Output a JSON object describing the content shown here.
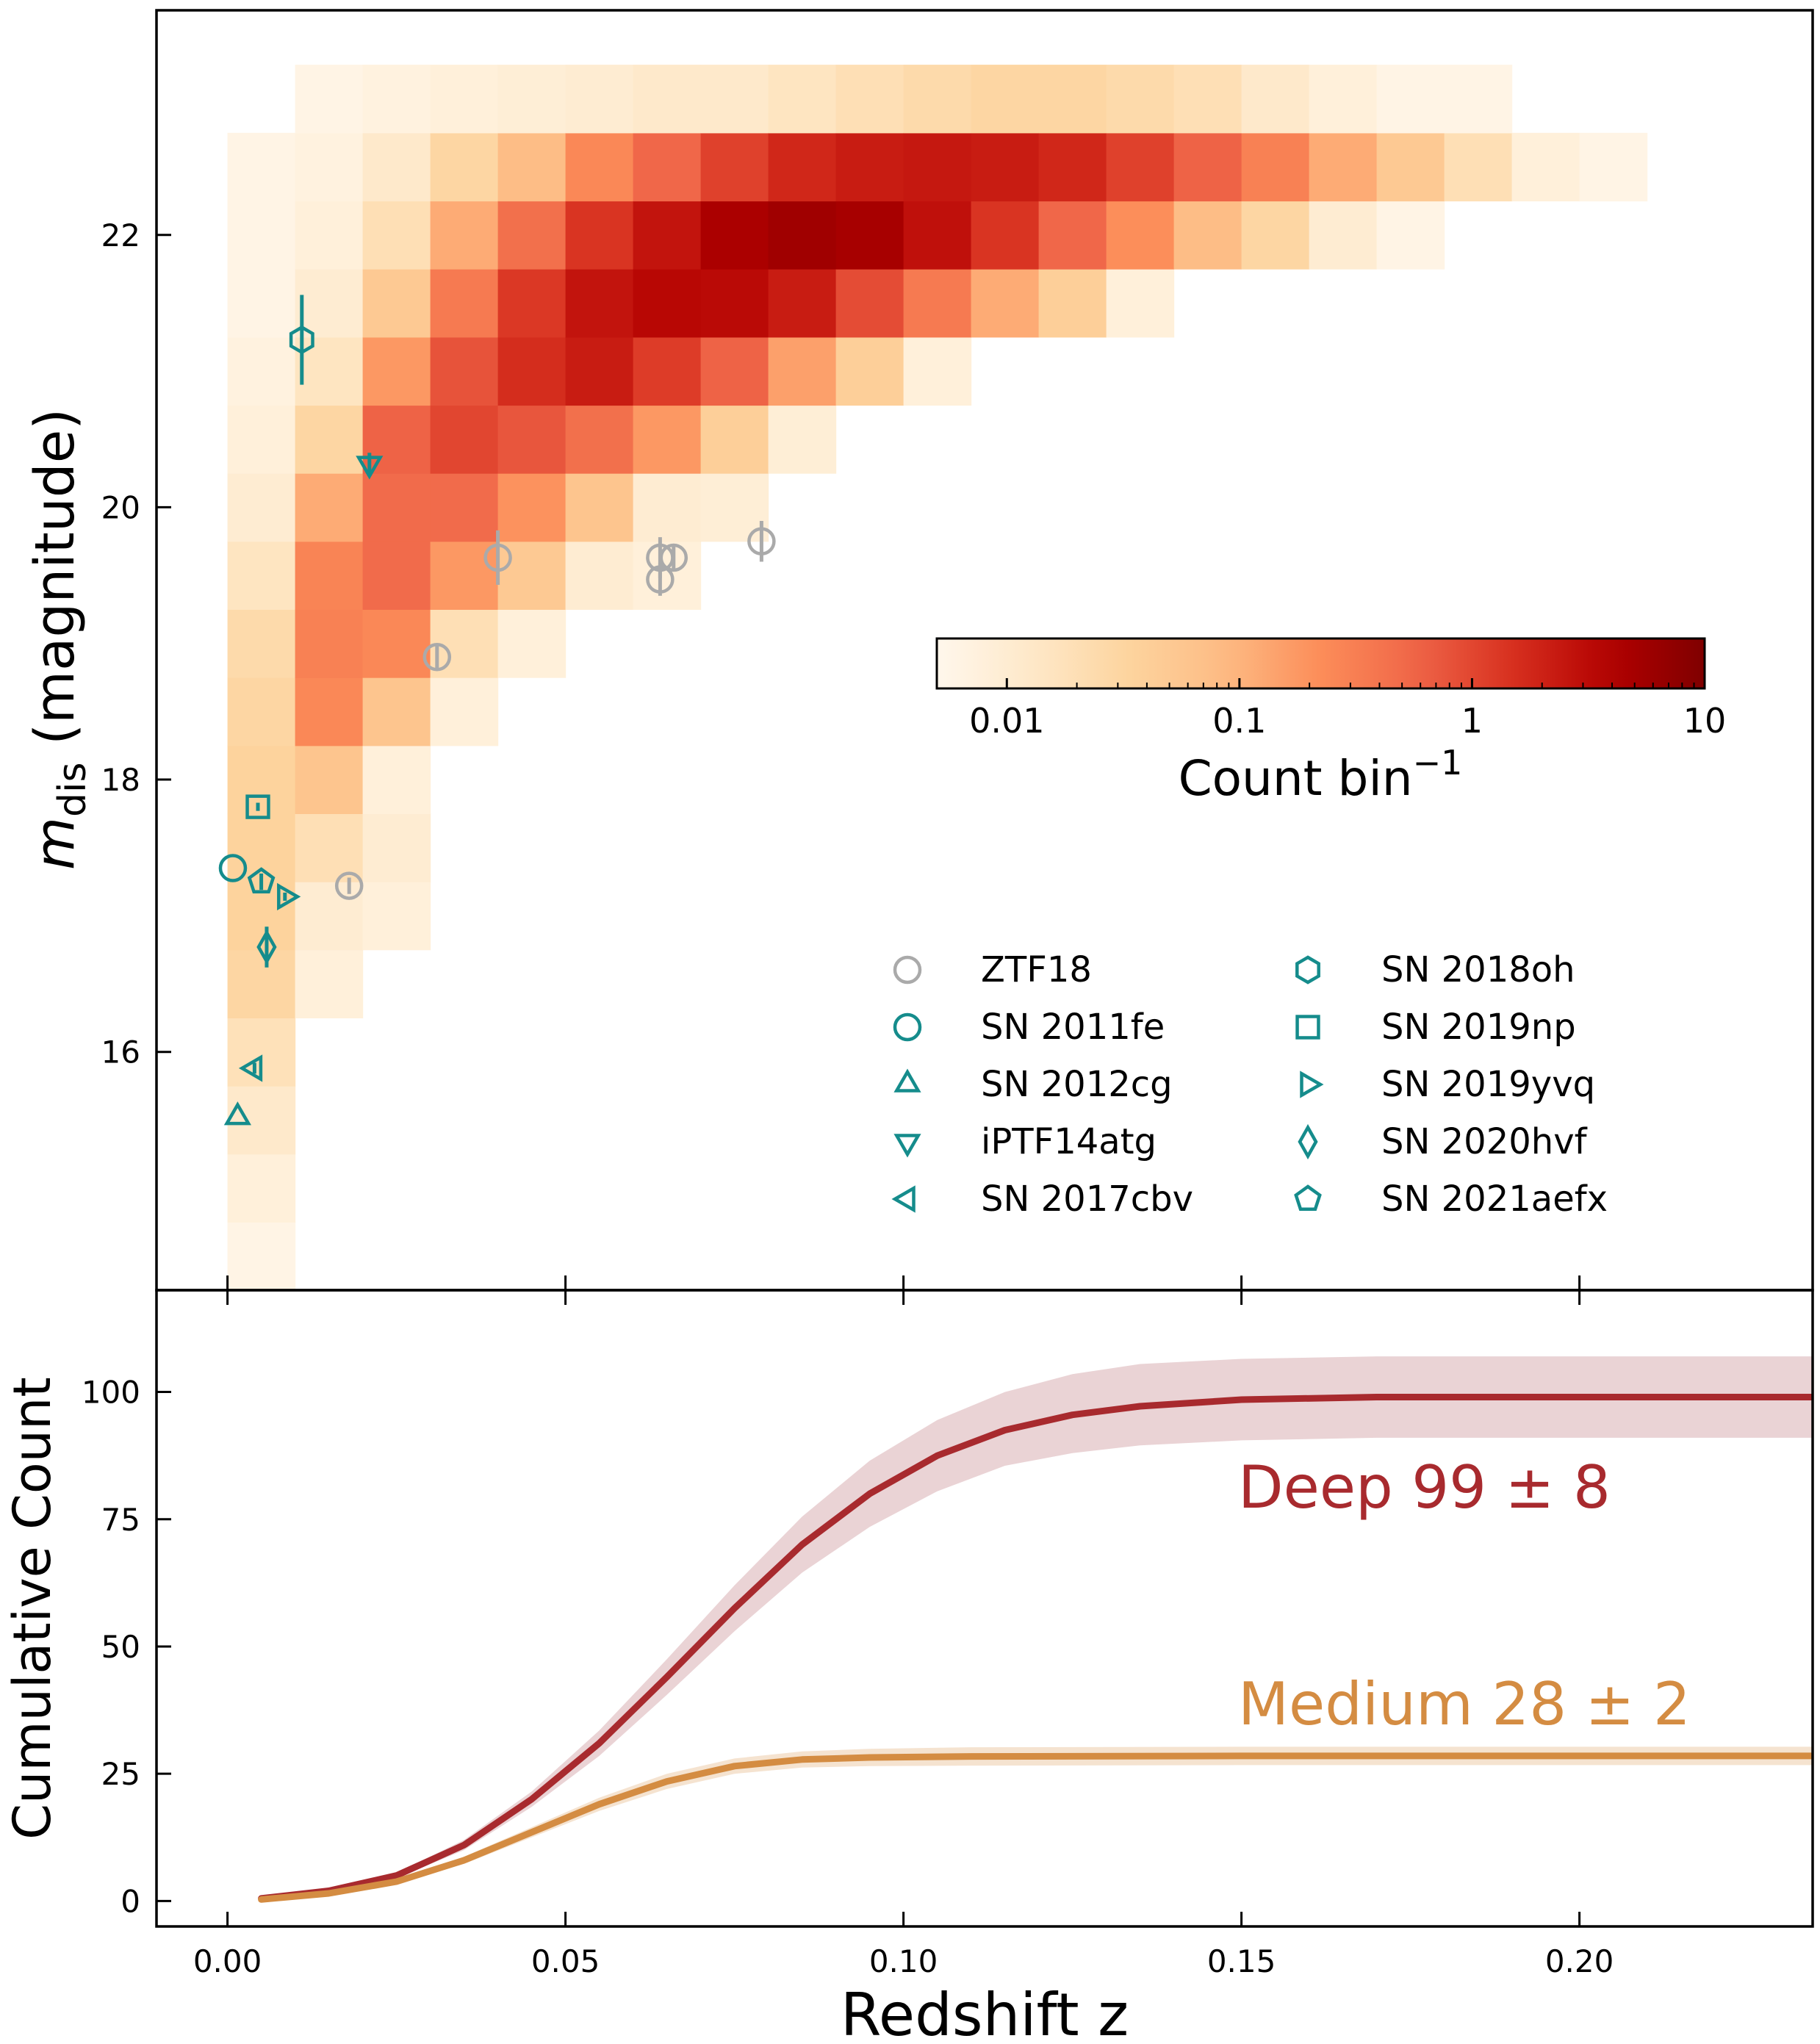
{
  "chart_data": [
    {
      "type": "heatmap",
      "panel": "top",
      "ylabel": "m",
      "ylabel_sub": "dis",
      "ylabel_suffix": " (magnitude)",
      "xlim": [
        -0.0105,
        0.2345
      ],
      "ylim": [
        14.25,
        23.65
      ],
      "yticks": [
        16,
        18,
        20,
        22
      ],
      "cell": {
        "dz": 0.01,
        "dm": 0.5
      },
      "colorbar": {
        "label": "Count bin",
        "label_sup": "−1",
        "scale": "log",
        "range": [
          0.005,
          10
        ],
        "ticks": [
          0.01,
          0.1,
          1,
          10
        ],
        "tick_labels": [
          "0.01",
          "0.1",
          "1",
          "10"
        ],
        "colormap": "OrRd"
      },
      "cells": [
        [
          0.005,
          14.5,
          0.006
        ],
        [
          0.005,
          15.0,
          0.008
        ],
        [
          0.005,
          15.5,
          0.012
        ],
        [
          0.005,
          16.0,
          0.018
        ],
        [
          0.005,
          16.5,
          0.03
        ],
        [
          0.005,
          17.0,
          0.035
        ],
        [
          0.005,
          17.5,
          0.035
        ],
        [
          0.005,
          18.0,
          0.035
        ],
        [
          0.005,
          18.5,
          0.03
        ],
        [
          0.005,
          19.0,
          0.025
        ],
        [
          0.005,
          19.5,
          0.015
        ],
        [
          0.005,
          20.0,
          0.01
        ],
        [
          0.005,
          20.5,
          0.008
        ],
        [
          0.005,
          21.0,
          0.007
        ],
        [
          0.005,
          21.5,
          0.006
        ],
        [
          0.005,
          22.0,
          0.006
        ],
        [
          0.005,
          22.5,
          0.006
        ],
        [
          0.015,
          16.5,
          0.008
        ],
        [
          0.015,
          17.0,
          0.01
        ],
        [
          0.015,
          17.5,
          0.02
        ],
        [
          0.015,
          18.0,
          0.06
        ],
        [
          0.015,
          18.5,
          0.25
        ],
        [
          0.015,
          19.0,
          0.3
        ],
        [
          0.015,
          19.5,
          0.28
        ],
        [
          0.015,
          20.0,
          0.12
        ],
        [
          0.015,
          20.5,
          0.03
        ],
        [
          0.015,
          21.0,
          0.015
        ],
        [
          0.015,
          21.5,
          0.01
        ],
        [
          0.015,
          22.0,
          0.008
        ],
        [
          0.015,
          22.5,
          0.007
        ],
        [
          0.015,
          23.0,
          0.006
        ],
        [
          0.025,
          17.0,
          0.008
        ],
        [
          0.025,
          17.5,
          0.01
        ],
        [
          0.025,
          18.0,
          0.008
        ],
        [
          0.025,
          18.5,
          0.06
        ],
        [
          0.025,
          19.0,
          0.25
        ],
        [
          0.025,
          19.5,
          0.5
        ],
        [
          0.025,
          20.0,
          0.5
        ],
        [
          0.025,
          20.5,
          0.6
        ],
        [
          0.025,
          21.0,
          0.18
        ],
        [
          0.025,
          21.5,
          0.05
        ],
        [
          0.025,
          22.0,
          0.02
        ],
        [
          0.025,
          22.5,
          0.012
        ],
        [
          0.025,
          23.0,
          0.007
        ],
        [
          0.035,
          18.5,
          0.008
        ],
        [
          0.035,
          19.0,
          0.02
        ],
        [
          0.035,
          19.5,
          0.18
        ],
        [
          0.035,
          20.0,
          0.5
        ],
        [
          0.035,
          20.5,
          1.0
        ],
        [
          0.035,
          21.0,
          0.8
        ],
        [
          0.035,
          21.5,
          0.35
        ],
        [
          0.035,
          22.0,
          0.12
        ],
        [
          0.035,
          22.5,
          0.03
        ],
        [
          0.035,
          23.0,
          0.008
        ],
        [
          0.045,
          19.0,
          0.008
        ],
        [
          0.045,
          19.5,
          0.05
        ],
        [
          0.045,
          20.0,
          0.2
        ],
        [
          0.045,
          20.5,
          0.75
        ],
        [
          0.045,
          21.0,
          1.6
        ],
        [
          0.045,
          21.5,
          1.3
        ],
        [
          0.045,
          22.0,
          0.45
        ],
        [
          0.045,
          22.5,
          0.08
        ],
        [
          0.045,
          23.0,
          0.009
        ],
        [
          0.055,
          19.5,
          0.01
        ],
        [
          0.055,
          20.0,
          0.06
        ],
        [
          0.055,
          20.5,
          0.45
        ],
        [
          0.055,
          21.0,
          2.2
        ],
        [
          0.055,
          21.5,
          2.6
        ],
        [
          0.055,
          22.0,
          1.4
        ],
        [
          0.055,
          22.5,
          0.25
        ],
        [
          0.055,
          23.0,
          0.01
        ],
        [
          0.065,
          19.5,
          0.008
        ],
        [
          0.065,
          20.0,
          0.01
        ],
        [
          0.065,
          20.5,
          0.18
        ],
        [
          0.065,
          21.0,
          1.2
        ],
        [
          0.065,
          21.5,
          3.4
        ],
        [
          0.065,
          22.0,
          2.6
        ],
        [
          0.065,
          22.5,
          0.55
        ],
        [
          0.065,
          23.0,
          0.012
        ],
        [
          0.075,
          20.0,
          0.009
        ],
        [
          0.075,
          20.5,
          0.04
        ],
        [
          0.075,
          21.0,
          0.6
        ],
        [
          0.075,
          21.5,
          3.2
        ],
        [
          0.075,
          22.0,
          4.5
        ],
        [
          0.075,
          22.5,
          1.1
        ],
        [
          0.075,
          23.0,
          0.012
        ],
        [
          0.085,
          20.5,
          0.009
        ],
        [
          0.085,
          21.0,
          0.15
        ],
        [
          0.085,
          21.5,
          2.2
        ],
        [
          0.085,
          22.0,
          5.5
        ],
        [
          0.085,
          22.5,
          1.8
        ],
        [
          0.085,
          23.0,
          0.015
        ],
        [
          0.095,
          21.0,
          0.04
        ],
        [
          0.095,
          21.5,
          0.9
        ],
        [
          0.095,
          22.0,
          4.8
        ],
        [
          0.095,
          22.5,
          2.2
        ],
        [
          0.095,
          23.0,
          0.02
        ],
        [
          0.105,
          21.0,
          0.008
        ],
        [
          0.105,
          21.5,
          0.35
        ],
        [
          0.105,
          22.0,
          2.8
        ],
        [
          0.105,
          22.5,
          2.4
        ],
        [
          0.105,
          23.0,
          0.025
        ],
        [
          0.115,
          21.5,
          0.12
        ],
        [
          0.115,
          22.0,
          1.4
        ],
        [
          0.115,
          22.5,
          2.2
        ],
        [
          0.115,
          23.0,
          0.03
        ],
        [
          0.125,
          21.5,
          0.04
        ],
        [
          0.125,
          22.0,
          0.55
        ],
        [
          0.125,
          22.5,
          1.8
        ],
        [
          0.125,
          23.0,
          0.03
        ],
        [
          0.135,
          21.5,
          0.008
        ],
        [
          0.135,
          22.0,
          0.22
        ],
        [
          0.135,
          22.5,
          1.1
        ],
        [
          0.135,
          23.0,
          0.025
        ],
        [
          0.145,
          22.0,
          0.08
        ],
        [
          0.145,
          22.5,
          0.6
        ],
        [
          0.145,
          23.0,
          0.02
        ],
        [
          0.155,
          22.0,
          0.03
        ],
        [
          0.155,
          22.5,
          0.3
        ],
        [
          0.155,
          23.0,
          0.012
        ],
        [
          0.165,
          22.0,
          0.01
        ],
        [
          0.165,
          22.5,
          0.12
        ],
        [
          0.165,
          23.0,
          0.008
        ],
        [
          0.175,
          22.0,
          0.006
        ],
        [
          0.175,
          22.5,
          0.05
        ],
        [
          0.175,
          23.0,
          0.006
        ],
        [
          0.185,
          22.5,
          0.02
        ],
        [
          0.185,
          23.0,
          0.006
        ],
        [
          0.195,
          22.5,
          0.008
        ],
        [
          0.205,
          22.5,
          0.006
        ]
      ],
      "points": [
        {
          "name": "ZTF18",
          "marker": "circle",
          "color": "#aaaaaa",
          "data": [
            {
              "x": 0.018,
              "y": 17.22,
              "yerr": 0.06
            },
            {
              "x": 0.031,
              "y": 18.9,
              "yerr": 0.1
            },
            {
              "x": 0.04,
              "y": 19.63,
              "yerr": 0.2
            },
            {
              "x": 0.064,
              "y": 19.63,
              "yerr": 0.15
            },
            {
              "x": 0.066,
              "y": 19.63,
              "yerr": 0.1
            },
            {
              "x": 0.064,
              "y": 19.47,
              "yerr": 0.12
            },
            {
              "x": 0.079,
              "y": 19.75,
              "yerr": 0.15
            }
          ]
        },
        {
          "name": "SN 2011fe",
          "marker": "circle",
          "color": "#158c8c",
          "data": [
            {
              "x": 0.0008,
              "y": 17.35,
              "yerr": 0.0
            }
          ]
        },
        {
          "name": "SN 2012cg",
          "marker": "triangle-up",
          "color": "#158c8c",
          "data": [
            {
              "x": 0.0015,
              "y": 15.52,
              "yerr": 0.0
            }
          ]
        },
        {
          "name": "iPTF14atg",
          "marker": "triangle-down",
          "color": "#158c8c",
          "data": [
            {
              "x": 0.021,
              "y": 20.32,
              "yerr": 0.08
            }
          ]
        },
        {
          "name": "SN 2017cbv",
          "marker": "triangle-left",
          "color": "#158c8c",
          "data": [
            {
              "x": 0.004,
              "y": 15.88,
              "yerr": 0.04
            }
          ]
        },
        {
          "name": "SN 2018oh",
          "marker": "hexagon",
          "color": "#158c8c",
          "data": [
            {
              "x": 0.011,
              "y": 21.23,
              "yerr": 0.33
            }
          ]
        },
        {
          "name": "SN 2019np",
          "marker": "square",
          "color": "#158c8c",
          "data": [
            {
              "x": 0.0045,
              "y": 17.8,
              "yerr": 0.03
            }
          ]
        },
        {
          "name": "SN 2019yvq",
          "marker": "triangle-right",
          "color": "#158c8c",
          "data": [
            {
              "x": 0.0085,
              "y": 17.14,
              "yerr": 0.03
            }
          ]
        },
        {
          "name": "SN 2020hvf",
          "marker": "diamond",
          "color": "#158c8c",
          "data": [
            {
              "x": 0.0058,
              "y": 16.77,
              "yerr": 0.15
            }
          ]
        },
        {
          "name": "SN 2021aefx",
          "marker": "pentagon",
          "color": "#158c8c",
          "data": [
            {
              "x": 0.005,
              "y": 17.25,
              "yerr": 0.06
            }
          ]
        }
      ],
      "legend_placement": "lower right",
      "colorbar_placement": "center right"
    },
    {
      "type": "line",
      "panel": "bottom",
      "xlabel": "Redshift z",
      "ylabel": "Cumulative Count",
      "xlim": [
        -0.0105,
        0.2345
      ],
      "ylim": [
        -5,
        120
      ],
      "xticks": [
        0.0,
        0.05,
        0.1,
        0.15,
        0.2
      ],
      "xtick_labels": [
        "0.00",
        "0.05",
        "0.10",
        "0.15",
        "0.20"
      ],
      "yticks": [
        0,
        25,
        50,
        75,
        100
      ],
      "series": [
        {
          "name": "Deep",
          "annotation": "Deep 99 ± 8",
          "color": "#a82a2e",
          "band_color": "#ead3d5",
          "x": [
            0.005,
            0.015,
            0.025,
            0.035,
            0.045,
            0.055,
            0.065,
            0.075,
            0.085,
            0.095,
            0.105,
            0.115,
            0.125,
            0.135,
            0.15,
            0.17,
            0.2,
            0.2345
          ],
          "y": [
            0.5,
            2,
            5,
            11,
            20,
            31,
            44,
            57.5,
            70,
            80,
            87.5,
            92.5,
            95.5,
            97.2,
            98.5,
            99,
            99,
            99
          ],
          "lower": [
            0.4,
            1.7,
            4.5,
            10,
            18.5,
            28.5,
            40.5,
            53,
            64.5,
            73.5,
            80.5,
            85.5,
            88,
            89.5,
            90.5,
            91,
            91,
            91
          ],
          "upper": [
            0.6,
            2.3,
            5.5,
            12,
            21.5,
            33.5,
            47.5,
            62,
            75.5,
            86.5,
            94.5,
            100,
            103.5,
            105.5,
            106.5,
            107,
            107,
            107
          ]
        },
        {
          "name": "Medium",
          "annotation": "Medium 28 ± 2",
          "color": "#d48c42",
          "band_color": "#f5e3d0",
          "x": [
            0.005,
            0.015,
            0.025,
            0.035,
            0.045,
            0.055,
            0.065,
            0.075,
            0.085,
            0.095,
            0.11,
            0.15,
            0.2,
            0.2345
          ],
          "y": [
            0.3,
            1.5,
            3.8,
            8,
            13.5,
            19,
            23.5,
            26.5,
            27.8,
            28.2,
            28.4,
            28.5,
            28.5,
            28.5
          ],
          "lower": [
            0.2,
            1.3,
            3.4,
            7.3,
            12.5,
            17.7,
            22,
            25,
            26.2,
            26.5,
            26.6,
            26.7,
            26.7,
            26.7
          ],
          "upper": [
            0.4,
            1.7,
            4.2,
            8.7,
            14.5,
            20.3,
            25,
            28,
            29.4,
            29.9,
            30.2,
            30.3,
            30.3,
            30.3
          ]
        }
      ]
    }
  ]
}
